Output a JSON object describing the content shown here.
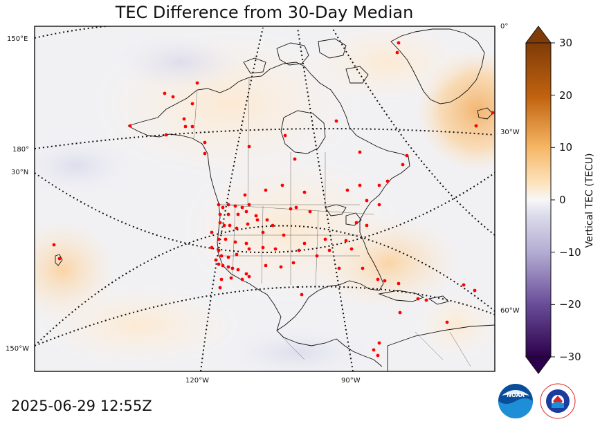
{
  "title": "TEC Difference from 30-Day Median",
  "timestamp": "2025-06-29 12:55Z",
  "colorbar": {
    "label": "Vertical TEC (TECU)",
    "ticks": [
      "30",
      "20",
      "10",
      "0",
      "−10",
      "−20",
      "−30"
    ],
    "tick_values": [
      30,
      20,
      10,
      0,
      -10,
      -20,
      -30
    ],
    "range": [
      -30,
      30
    ],
    "high_color": "#7f3b08",
    "mid_color": "#f7f7f7",
    "low_color": "#2d004b"
  },
  "graticule": {
    "left_labels": [
      "150°E",
      "180°",
      "30°N",
      "150°W"
    ],
    "bottom_labels": [
      "120°W",
      "90°W"
    ],
    "right_labels": [
      "0°",
      "30°W",
      "60°W"
    ]
  },
  "logos": {
    "noaa": "NOAA",
    "nws": "NATIONAL WEATHER SERVICE"
  },
  "icons": {
    "noaa": "noaa-logo",
    "nws": "nws-logo"
  }
}
